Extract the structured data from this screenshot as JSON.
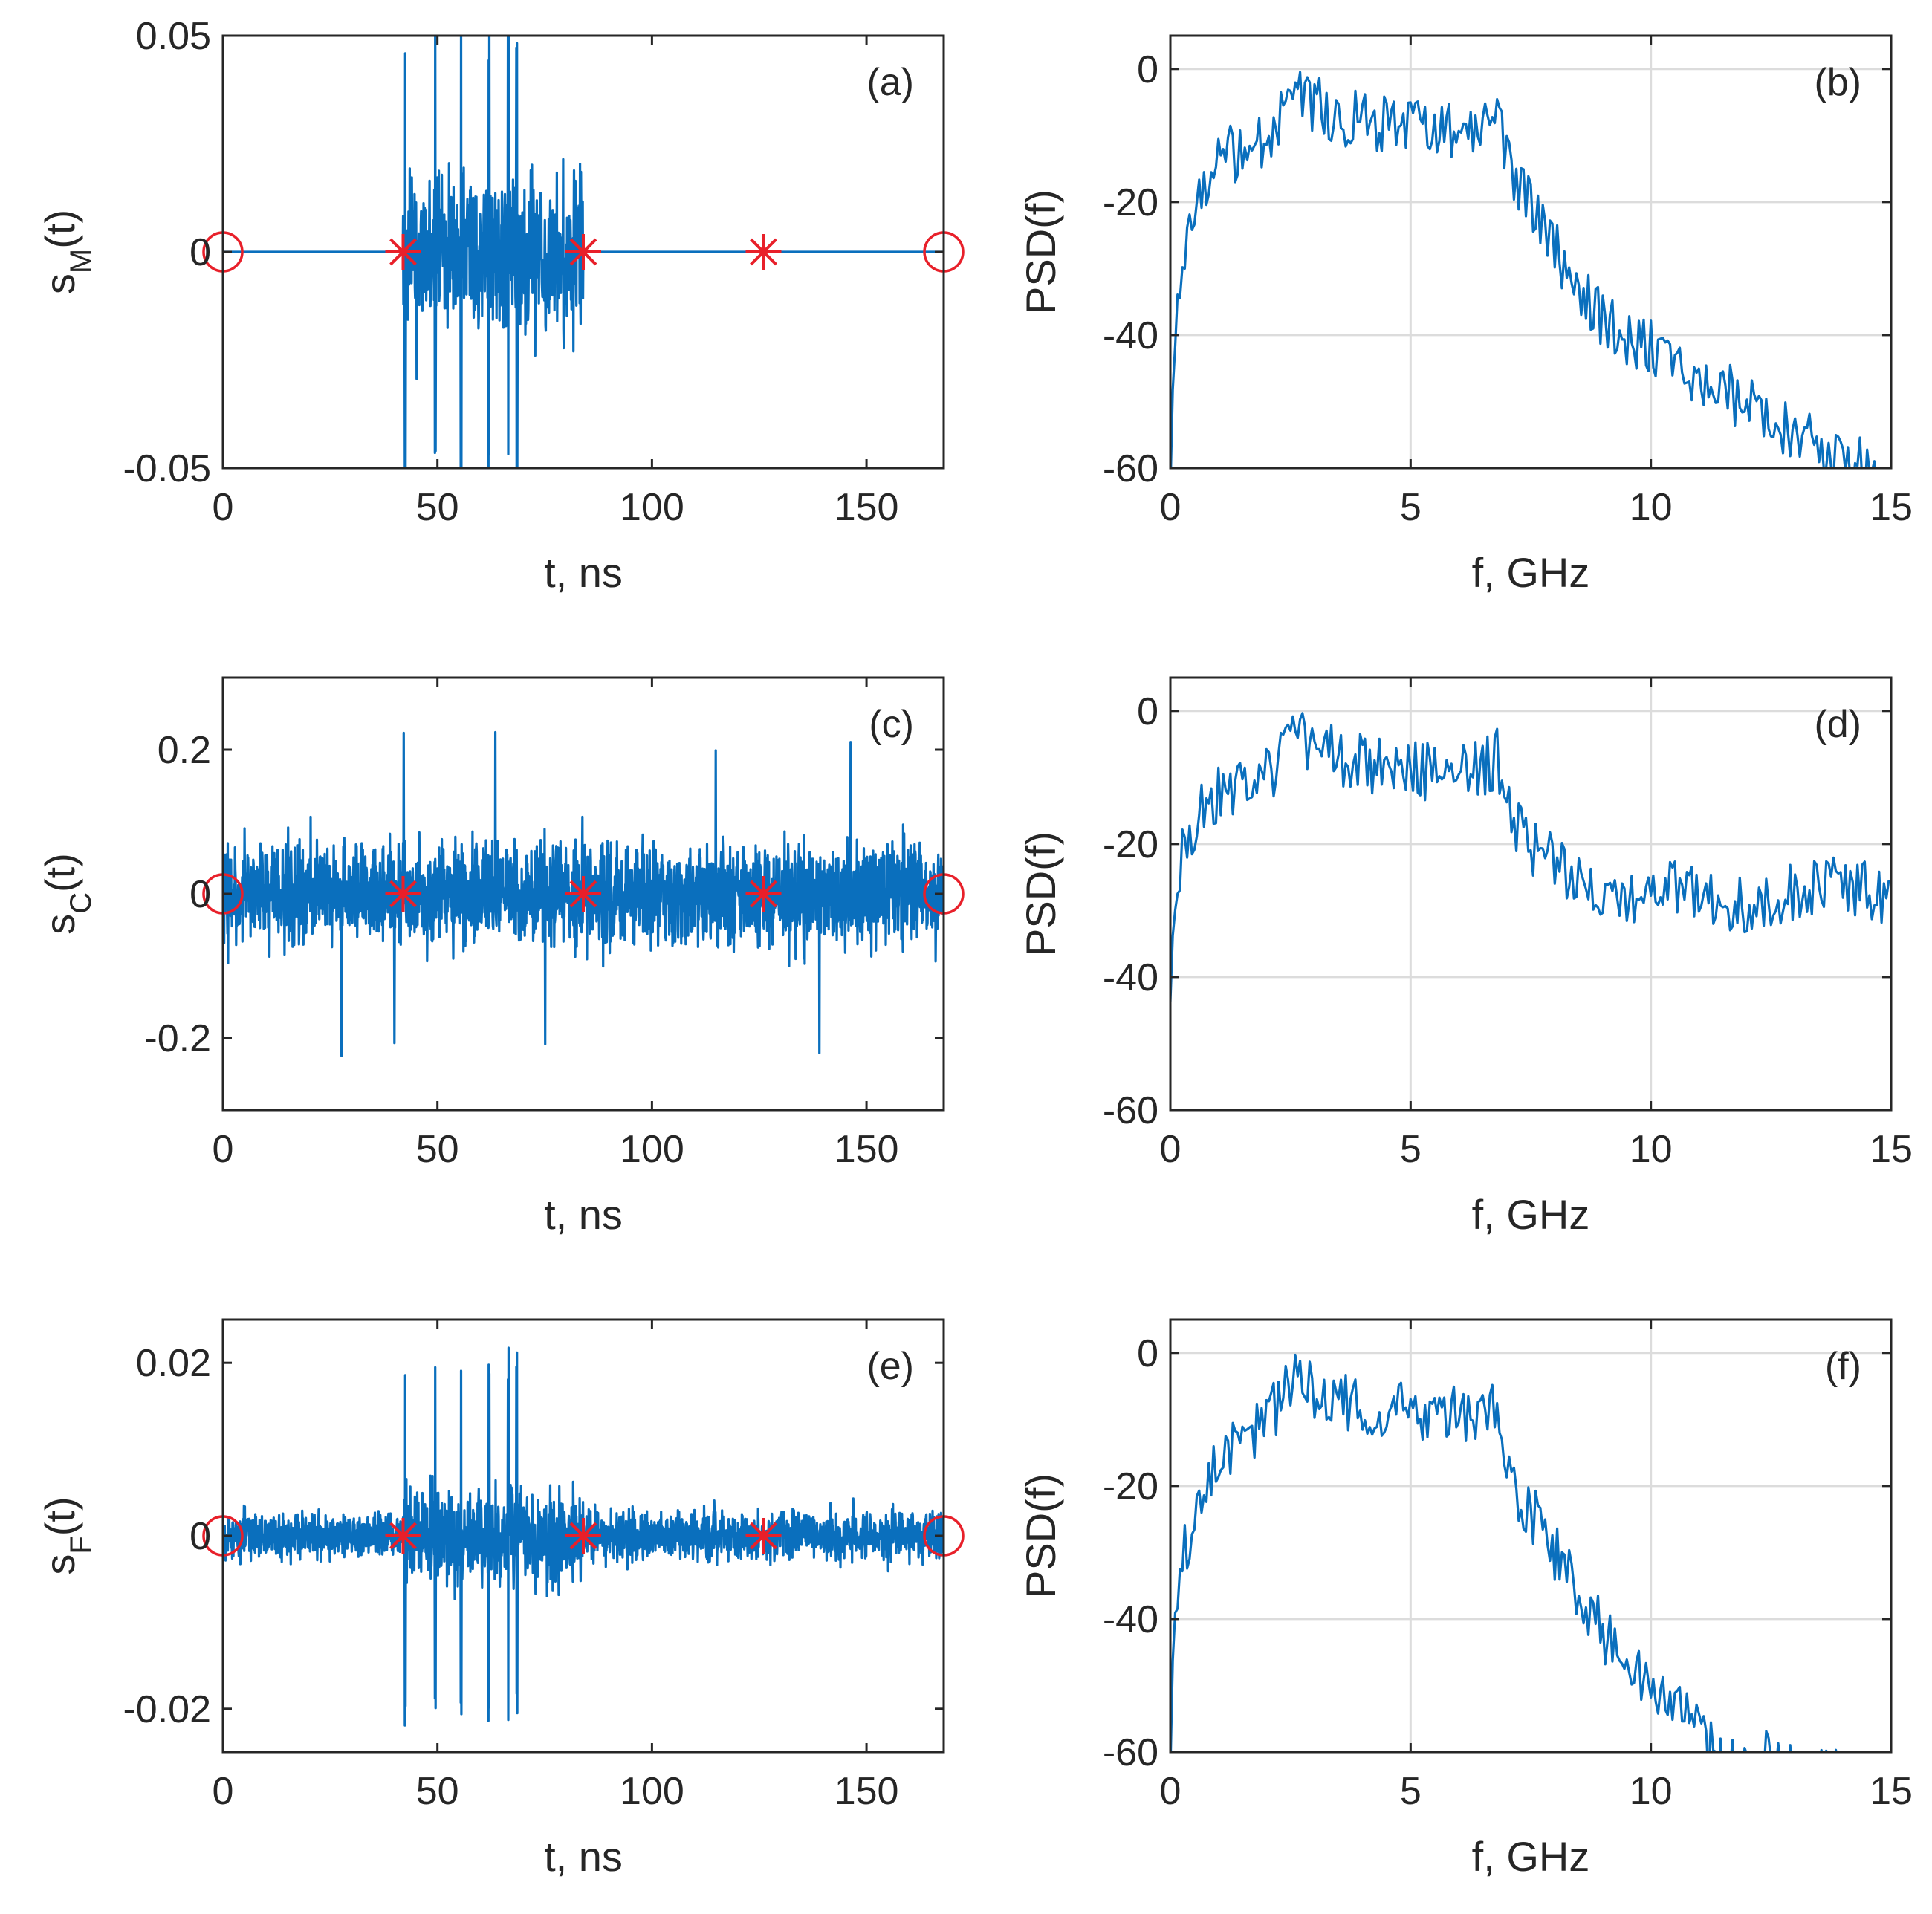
{
  "figure": {
    "background": "#ffffff",
    "line_color": "#0a6fbd",
    "marker_color": "#e8202a"
  },
  "chart_data": [
    {
      "id": "a",
      "type": "line",
      "panel_label": "(a)",
      "xlabel": "t, ns",
      "ylabel_main": "s",
      "ylabel_sub": "M",
      "ylabel_tail": "(t)",
      "xlim": [
        0,
        168
      ],
      "ylim": [
        -0.05,
        0.05
      ],
      "xticks": [
        0,
        50,
        100,
        150
      ],
      "xtick_labels": [
        "0",
        "50",
        "100",
        "150"
      ],
      "yticks": [
        -0.05,
        0,
        0.05
      ],
      "ytick_labels": [
        "-0.05",
        "0",
        "0.05"
      ],
      "grid": false,
      "signal": {
        "kind": "burst",
        "baseline": 0,
        "burst_start": 42,
        "burst_end": 84,
        "envelope": 0.028,
        "spike_amplitude": 0.055,
        "spikes_at": [
          42.5,
          49.5,
          55.5,
          62,
          66.5,
          68.5
        ]
      },
      "markers": {
        "circles": [
          [
            0,
            0
          ],
          [
            168,
            0
          ]
        ],
        "stars": [
          [
            42,
            0
          ],
          [
            84,
            0
          ],
          [
            126,
            0
          ]
        ]
      }
    },
    {
      "id": "b",
      "type": "line",
      "panel_label": "(b)",
      "xlabel": "f, GHz",
      "ylabel": "PSD(f)",
      "xlim": [
        0,
        15
      ],
      "ylim": [
        -60,
        5
      ],
      "xticks": [
        0,
        5,
        10,
        15
      ],
      "xtick_labels": [
        "0",
        "5",
        "10",
        "15"
      ],
      "yticks": [
        -60,
        -40,
        -20,
        0
      ],
      "ytick_labels": [
        "-60",
        "-40",
        "-20",
        "0"
      ],
      "grid": true,
      "envelope": {
        "f": [
          0,
          0.1,
          0.3,
          0.6,
          1.0,
          2.0,
          2.6,
          3.5,
          5.0,
          6.5,
          6.8,
          7.0,
          8.0,
          9.0,
          10.0,
          11.0,
          12.0,
          13.0,
          14.0,
          15.0
        ],
        "psd": [
          -60,
          -40,
          -28,
          -20,
          -14,
          -10,
          -4,
          -7,
          -9,
          -9,
          -7,
          -14,
          -27,
          -38,
          -42,
          -47,
          -50,
          -55,
          -58,
          -62
        ]
      }
    },
    {
      "id": "c",
      "type": "line",
      "panel_label": "(c)",
      "xlabel": "t, ns",
      "ylabel_main": "s",
      "ylabel_sub": "C",
      "ylabel_tail": "(t)",
      "xlim": [
        0,
        168
      ],
      "ylim": [
        -0.3,
        0.3
      ],
      "xticks": [
        0,
        50,
        100,
        150
      ],
      "xtick_labels": [
        "0",
        "50",
        "100",
        "150"
      ],
      "yticks": [
        -0.2,
        0,
        0.2
      ],
      "ytick_labels": [
        "-0.2",
        "0",
        "0.2"
      ],
      "grid": false,
      "signal": {
        "kind": "noise",
        "baseline": 0,
        "envelope": 0.13,
        "peak": 0.23
      },
      "markers": {
        "circles": [
          [
            0,
            0
          ],
          [
            168,
            0
          ]
        ],
        "stars": [
          [
            42,
            0
          ],
          [
            84,
            0
          ],
          [
            126,
            0
          ]
        ]
      }
    },
    {
      "id": "d",
      "type": "line",
      "panel_label": "(d)",
      "xlabel": "f, GHz",
      "ylabel": "PSD(f)",
      "xlim": [
        0,
        15
      ],
      "ylim": [
        -60,
        5
      ],
      "xticks": [
        0,
        5,
        10,
        15
      ],
      "xtick_labels": [
        "0",
        "5",
        "10",
        "15"
      ],
      "yticks": [
        -60,
        -40,
        -20,
        0
      ],
      "ytick_labels": [
        "-60",
        "-40",
        "-20",
        "0"
      ],
      "grid": true,
      "envelope": {
        "f": [
          0,
          0.1,
          0.3,
          0.6,
          1.0,
          2.0,
          2.6,
          3.5,
          5.0,
          6.5,
          6.8,
          7.0,
          7.5,
          8.5,
          9.5,
          10.5,
          11.5,
          12.5,
          13.5,
          14.5,
          15.0
        ],
        "psd": [
          -42,
          -28,
          -20,
          -16,
          -12,
          -10,
          -4,
          -7,
          -9,
          -9,
          -7,
          -15,
          -20,
          -25,
          -28,
          -26,
          -30,
          -28,
          -26,
          -27,
          -30
        ]
      }
    },
    {
      "id": "e",
      "type": "line",
      "panel_label": "(e)",
      "xlabel": "t, ns",
      "ylabel_main": "s",
      "ylabel_sub": "F",
      "ylabel_tail": "(t)",
      "xlim": [
        0,
        168
      ],
      "ylim": [
        -0.025,
        0.025
      ],
      "xticks": [
        0,
        50,
        100,
        150
      ],
      "xtick_labels": [
        "0",
        "50",
        "100",
        "150"
      ],
      "yticks": [
        -0.02,
        0,
        0.02
      ],
      "ytick_labels": [
        "-0.02",
        "0",
        "0.02"
      ],
      "grid": false,
      "signal": {
        "kind": "noise_burst",
        "baseline": 0,
        "envelope": 0.0045,
        "burst_start": 42,
        "burst_end": 84,
        "burst_envelope": 0.009,
        "spike_amplitude": 0.022,
        "spikes_at": [
          42.5,
          49.5,
          55.5,
          62,
          66.5,
          68.5
        ]
      },
      "markers": {
        "circles": [
          [
            0,
            0
          ],
          [
            168,
            0
          ]
        ],
        "stars": [
          [
            42,
            0
          ],
          [
            84,
            0
          ],
          [
            126,
            0
          ]
        ]
      }
    },
    {
      "id": "f",
      "type": "line",
      "panel_label": "(f)",
      "xlabel": "f, GHz",
      "ylabel": "PSD(f)",
      "xlim": [
        0,
        15
      ],
      "ylim": [
        -60,
        5
      ],
      "xticks": [
        0,
        5,
        10,
        15
      ],
      "xtick_labels": [
        "0",
        "5",
        "10",
        "15"
      ],
      "yticks": [
        -60,
        -40,
        -20,
        0
      ],
      "ytick_labels": [
        "-60",
        "-40",
        "-20",
        "0"
      ],
      "grid": true,
      "envelope": {
        "f": [
          0,
          0.1,
          0.3,
          0.6,
          1.0,
          2.0,
          2.6,
          3.5,
          5.0,
          6.5,
          6.8,
          7.0,
          8.0,
          9.0,
          10.0,
          11.0,
          11.5,
          12.5,
          13.0
        ],
        "psd": [
          -60,
          -40,
          -30,
          -22,
          -16,
          -10,
          -4,
          -7,
          -9,
          -9,
          -8,
          -18,
          -30,
          -42,
          -50,
          -57,
          -63,
          -60,
          -64
        ]
      }
    }
  ]
}
